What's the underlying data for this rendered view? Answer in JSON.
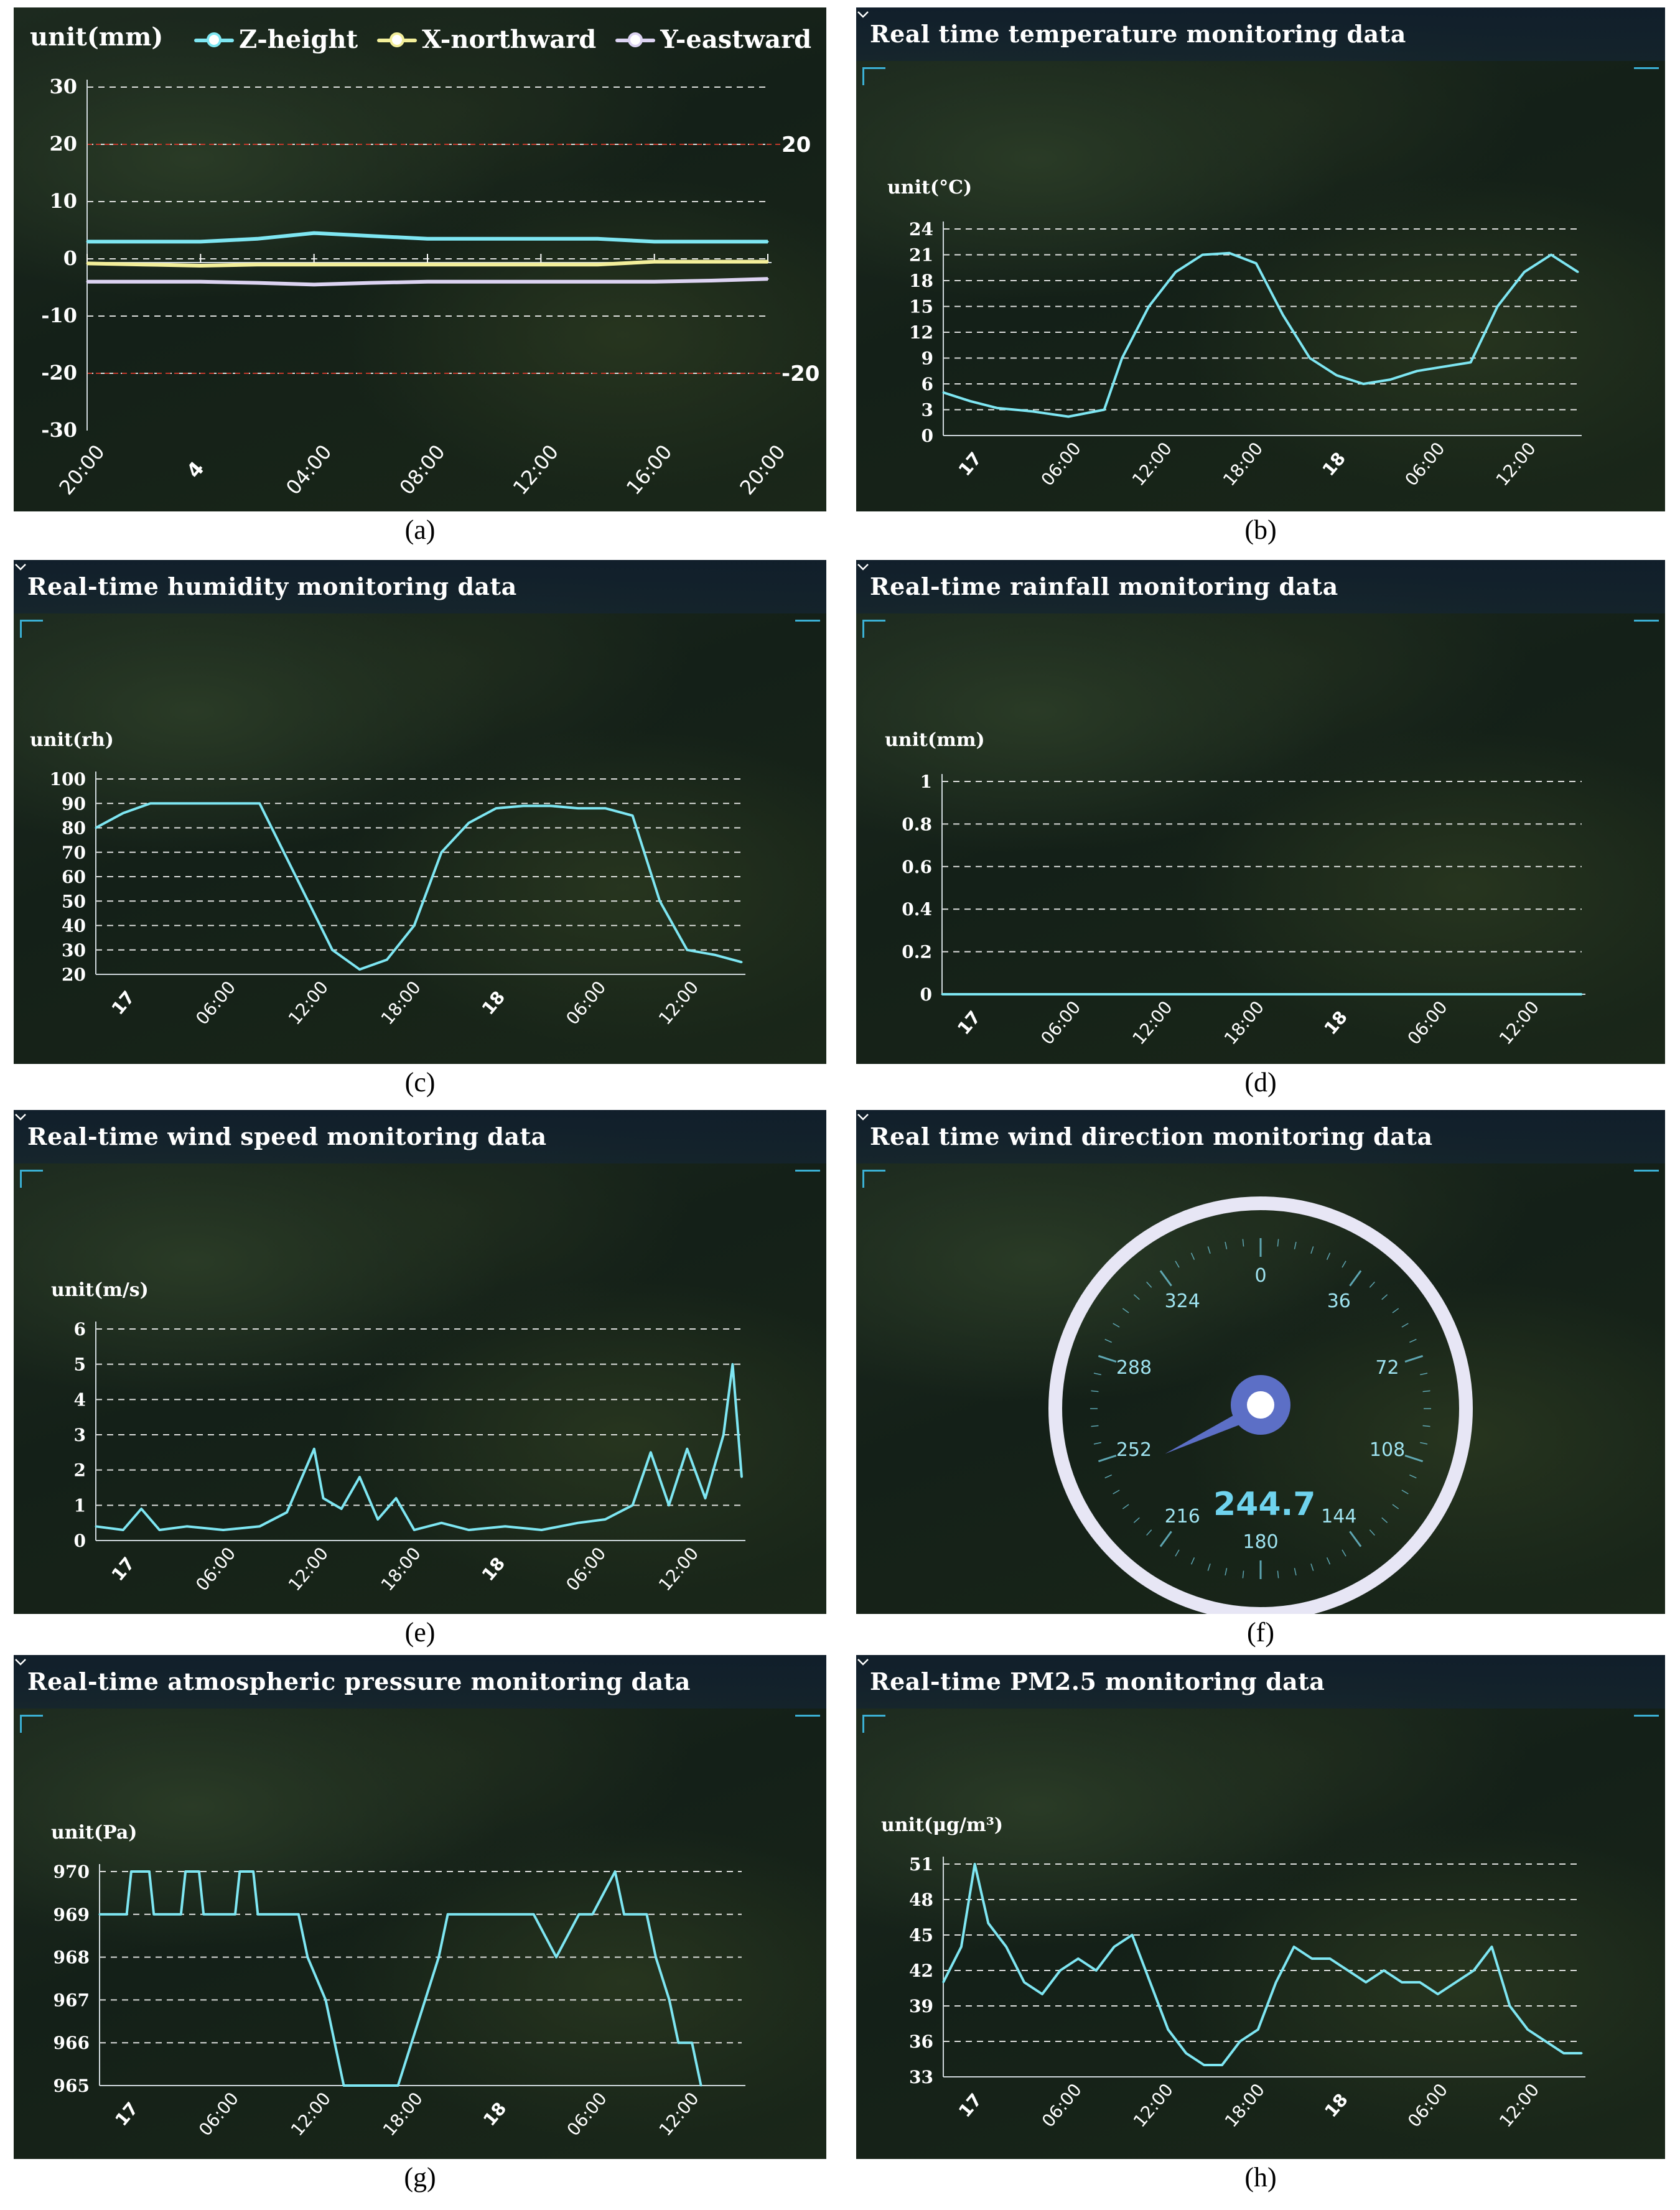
{
  "captions": [
    "(a)",
    "(b)",
    "(c)",
    "(d)",
    "(e)",
    "(f)",
    "(g)",
    "(h)"
  ],
  "colors": {
    "cyan": "#7ee6f2",
    "yellow": "#f3ef9a",
    "lavender": "#dcd3f2",
    "red_line": "#c0392b",
    "gauge": "#5c6fc6"
  },
  "panel_a": {
    "unit": "unit(mm)",
    "legend": [
      {
        "name": "Z-height",
        "color": "#7ee6f2"
      },
      {
        "name": "X-northward",
        "color": "#f3ef9a"
      },
      {
        "name": "Y-eastward",
        "color": "#dcd3f2"
      }
    ],
    "threshold_labels": [
      "20",
      "-20"
    ]
  },
  "panel_b": {
    "title": "Real time temperature monitoring data",
    "unit": "unit(°C)"
  },
  "panel_c": {
    "title": "Real-time humidity monitoring data",
    "unit": "unit(rh)"
  },
  "panel_d": {
    "title": "Real-time rainfall monitoring data",
    "unit": "unit(mm)"
  },
  "panel_e": {
    "title": "Real-time wind speed monitoring data",
    "unit": "unit(m/s)"
  },
  "panel_f": {
    "title": "Real time wind direction monitoring data",
    "value": "244.7",
    "dial_labels": [
      "0",
      "36",
      "72",
      "108",
      "144",
      "180",
      "216",
      "252",
      "288",
      "324"
    ]
  },
  "panel_g": {
    "title": "Real-time atmospheric pressure monitoring data",
    "unit": "unit(Pa)"
  },
  "panel_h": {
    "title": "Real-time PM2.5 monitoring data",
    "unit": "unit(μg/m³)"
  },
  "chart_data": [
    {
      "id": "a",
      "type": "line",
      "ylabel": "unit(mm)",
      "yticks": [
        30,
        20,
        10,
        0,
        -10,
        -20,
        -30
      ],
      "ylim": [
        -30,
        30
      ],
      "xticks": [
        "20:00",
        "4",
        "04:00",
        "08:00",
        "12:00",
        "16:00",
        "20:00"
      ],
      "thresholds": [
        20,
        -20
      ],
      "series": [
        {
          "name": "Z-height",
          "color": "#7ee6f2",
          "x": [
            0,
            0.5,
            1,
            1.5,
            2,
            2.5,
            3,
            3.5,
            4,
            4.5,
            5,
            5.5,
            6
          ],
          "values": [
            3,
            3,
            3,
            3.5,
            4.5,
            4,
            3.5,
            3.5,
            3.5,
            3.5,
            3,
            3,
            3
          ]
        },
        {
          "name": "X-northward",
          "color": "#f3ef9a",
          "x": [
            0,
            0.5,
            1,
            1.5,
            2,
            2.5,
            3,
            3.5,
            4,
            4.5,
            5,
            5.5,
            6
          ],
          "values": [
            -0.8,
            -1,
            -1.2,
            -1,
            -1,
            -1,
            -1,
            -1,
            -1,
            -1,
            -0.5,
            -0.5,
            -0.5
          ]
        },
        {
          "name": "Y-eastward",
          "color": "#dcd3f2",
          "x": [
            0,
            0.5,
            1,
            1.5,
            2,
            2.5,
            3,
            3.5,
            4,
            4.5,
            5,
            5.5,
            6
          ],
          "values": [
            -4,
            -4,
            -4,
            -4.2,
            -4.5,
            -4.2,
            -4,
            -4,
            -4,
            -4,
            -4,
            -3.8,
            -3.5
          ]
        }
      ]
    },
    {
      "id": "b",
      "type": "line",
      "ylabel": "unit(°C)",
      "yticks": [
        24,
        21,
        18,
        15,
        12,
        9,
        6,
        3,
        0
      ],
      "ylim": [
        0,
        24
      ],
      "xticks": [
        "17",
        "06:00",
        "12:00",
        "18:00",
        "18",
        "06:00",
        "12:00"
      ],
      "series": [
        {
          "x": [
            0,
            0.3,
            0.6,
            1,
            1.4,
            1.8,
            2,
            2.3,
            2.6,
            2.9,
            3.2,
            3.5,
            3.8,
            4.1,
            4.4,
            4.7,
            5,
            5.3,
            5.6,
            5.9,
            6.2,
            6.5,
            6.8,
            7.1
          ],
          "values": [
            5,
            4,
            3.2,
            2.8,
            2.2,
            3,
            9,
            15,
            19,
            21,
            21.2,
            20,
            14,
            9,
            7,
            6,
            6.5,
            7.5,
            8,
            8.5,
            15,
            19,
            21,
            19
          ]
        }
      ]
    },
    {
      "id": "c",
      "type": "line",
      "ylabel": "unit(rh)",
      "yticks": [
        100,
        90,
        80,
        70,
        60,
        50,
        40,
        30,
        20
      ],
      "ylim": [
        20,
        100
      ],
      "xticks": [
        "17",
        "06:00",
        "12:00",
        "18:00",
        "18",
        "06:00",
        "12:00"
      ],
      "series": [
        {
          "x": [
            0,
            0.3,
            0.6,
            1,
            1.4,
            1.8,
            2.2,
            2.6,
            2.9,
            3.2,
            3.5,
            3.8,
            4.1,
            4.4,
            4.7,
            5,
            5.3,
            5.6,
            5.9,
            6.2,
            6.5,
            6.8,
            7.1
          ],
          "values": [
            80,
            86,
            90,
            90,
            90,
            90,
            60,
            30,
            22,
            26,
            40,
            70,
            82,
            88,
            89,
            89,
            88,
            88,
            85,
            50,
            30,
            28,
            25
          ]
        }
      ]
    },
    {
      "id": "d",
      "type": "line",
      "ylabel": "unit(mm)",
      "yticks": [
        1,
        0.8,
        0.6,
        0.4,
        0.2,
        0
      ],
      "ylim": [
        0,
        1
      ],
      "xticks": [
        "17",
        "06:00",
        "12:00",
        "18:00",
        "18",
        "06:00",
        "12:00"
      ],
      "series": [
        {
          "x": [
            0,
            7.1
          ],
          "values": [
            0,
            0
          ]
        }
      ]
    },
    {
      "id": "e",
      "type": "line",
      "ylabel": "unit(m/s)",
      "yticks": [
        6,
        5,
        4,
        3,
        2,
        1,
        0
      ],
      "ylim": [
        0,
        6
      ],
      "xticks": [
        "17",
        "06:00",
        "12:00",
        "18:00",
        "18",
        "06:00",
        "12:00"
      ],
      "series": [
        {
          "x": [
            0,
            0.3,
            0.5,
            0.7,
            1,
            1.4,
            1.8,
            2.1,
            2.4,
            2.5,
            2.7,
            2.9,
            3.1,
            3.3,
            3.5,
            3.8,
            4.1,
            4.5,
            4.9,
            5.3,
            5.6,
            5.9,
            6.1,
            6.3,
            6.5,
            6.7,
            6.9,
            7.0,
            7.1
          ],
          "values": [
            0.4,
            0.3,
            0.9,
            0.3,
            0.4,
            0.3,
            0.4,
            0.8,
            2.6,
            1.2,
            0.9,
            1.8,
            0.6,
            1.2,
            0.3,
            0.5,
            0.3,
            0.4,
            0.3,
            0.5,
            0.6,
            1.0,
            2.5,
            1.0,
            2.6,
            1.2,
            3.0,
            5.0,
            1.8
          ]
        }
      ]
    },
    {
      "id": "f",
      "type": "gauge",
      "value": 244.7,
      "dial": [
        "0",
        "36",
        "72",
        "108",
        "144",
        "180",
        "216",
        "252",
        "288",
        "324"
      ]
    },
    {
      "id": "g",
      "type": "line",
      "ylabel": "unit(Pa)",
      "yticks": [
        970,
        969,
        968,
        967,
        966,
        965
      ],
      "ylim": [
        965,
        970
      ],
      "xticks": [
        "17",
        "06:00",
        "12:00",
        "18:00",
        "18",
        "06:00",
        "12:00"
      ],
      "series": [
        {
          "x": [
            0,
            0.3,
            0.35,
            0.55,
            0.6,
            0.9,
            0.95,
            1.1,
            1.15,
            1.5,
            1.55,
            1.7,
            1.75,
            2.2,
            2.3,
            2.5,
            2.6,
            2.7,
            3.3,
            3.45,
            3.6,
            3.75,
            3.85,
            4.2,
            4.8,
            5.05,
            5.3,
            5.45,
            5.7,
            5.8,
            6.05,
            6.15,
            6.3,
            6.4,
            6.55,
            6.65
          ],
          "values": [
            969,
            969,
            970,
            970,
            969,
            969,
            970,
            970,
            969,
            969,
            970,
            970,
            969,
            969,
            968,
            967,
            966,
            965,
            965,
            966,
            967,
            968,
            969,
            969,
            969,
            968,
            969,
            969,
            970,
            969,
            969,
            968,
            967,
            966,
            966,
            965
          ]
        }
      ]
    },
    {
      "id": "h",
      "type": "line",
      "ylabel": "unit(μg/m³)",
      "yticks": [
        51,
        48,
        45,
        42,
        39,
        36,
        33
      ],
      "ylim": [
        33,
        51
      ],
      "xticks": [
        "17",
        "06:00",
        "12:00",
        "18:00",
        "18",
        "06:00",
        "12:00"
      ],
      "series": [
        {
          "x": [
            0,
            0.2,
            0.35,
            0.5,
            0.7,
            0.9,
            1.1,
            1.3,
            1.5,
            1.7,
            1.9,
            2.1,
            2.3,
            2.5,
            2.7,
            2.9,
            3.1,
            3.3,
            3.5,
            3.7,
            3.9,
            4.1,
            4.3,
            4.5,
            4.7,
            4.9,
            5.1,
            5.3,
            5.5,
            5.7,
            5.9,
            6.1,
            6.3,
            6.5,
            6.7,
            6.9,
            7.1
          ],
          "values": [
            41,
            44,
            51,
            46,
            44,
            41,
            40,
            42,
            43,
            42,
            44,
            45,
            41,
            37,
            35,
            34,
            34,
            36,
            37,
            41,
            44,
            43,
            43,
            42,
            41,
            42,
            41,
            41,
            40,
            41,
            42,
            44,
            39,
            37,
            36,
            35,
            35
          ]
        }
      ]
    }
  ]
}
